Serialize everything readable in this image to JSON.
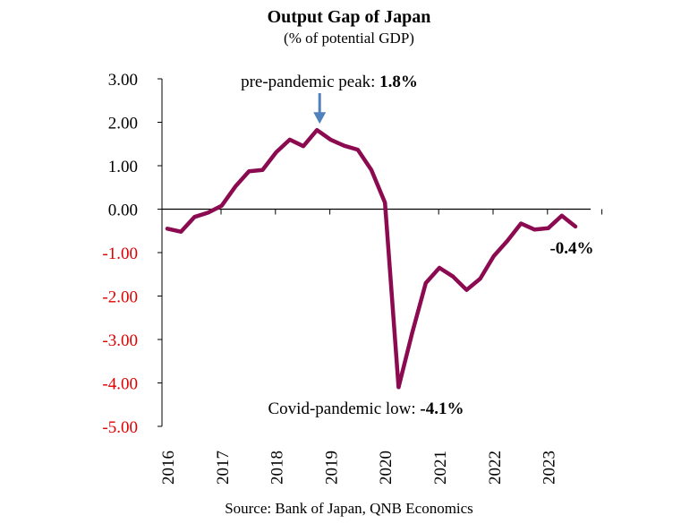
{
  "chart_data": {
    "type": "line",
    "title": "Output Gap of Japan",
    "subtitle": "(% of potential GDP)",
    "source": "Source: Bank of Japan, QNB Economics",
    "ylim": [
      -5,
      3
    ],
    "y_ticks": [
      "3.00",
      "2.00",
      "1.00",
      "0.00",
      "-1.00",
      "-2.00",
      "-3.00",
      "-4.00",
      "-5.00"
    ],
    "x_tick_labels": [
      "2016",
      "2017",
      "2018",
      "2019",
      "2020",
      "2021",
      "2022",
      "2023"
    ],
    "series": [
      {
        "name": "Output gap",
        "color": "#8b0a50",
        "quarters": [
          "2016Q1",
          "2016Q2",
          "2016Q3",
          "2016Q4",
          "2017Q1",
          "2017Q2",
          "2017Q3",
          "2017Q4",
          "2018Q1",
          "2018Q2",
          "2018Q3",
          "2018Q4",
          "2019Q1",
          "2019Q2",
          "2019Q3",
          "2019Q4",
          "2020Q1",
          "2020Q2",
          "2020Q3",
          "2020Q4",
          "2021Q1",
          "2021Q2",
          "2021Q3",
          "2021Q4",
          "2022Q1",
          "2022Q2",
          "2022Q3",
          "2022Q4",
          "2023Q1",
          "2023Q2",
          "2023Q3"
        ],
        "values": [
          -0.45,
          -0.52,
          -0.18,
          -0.08,
          0.08,
          0.52,
          0.87,
          0.9,
          1.31,
          1.6,
          1.45,
          1.82,
          1.6,
          1.46,
          1.37,
          0.9,
          0.15,
          -4.1,
          -2.85,
          -1.7,
          -1.35,
          -1.55,
          -1.86,
          -1.6,
          -1.08,
          -0.73,
          -0.33,
          -0.47,
          -0.44,
          -0.15,
          -0.4
        ]
      }
    ],
    "annotations": {
      "peak_prefix": "pre-pandemic peak: ",
      "peak_value": "1.8%",
      "low_prefix": "Covid-pandemic low: ",
      "low_value": "-4.1%",
      "last_value": "-0.4%"
    },
    "colors": {
      "line": "#8b0a50",
      "negative_tick": "#e00000",
      "positive_tick": "#000000",
      "arrow": "#4f81bd"
    }
  }
}
